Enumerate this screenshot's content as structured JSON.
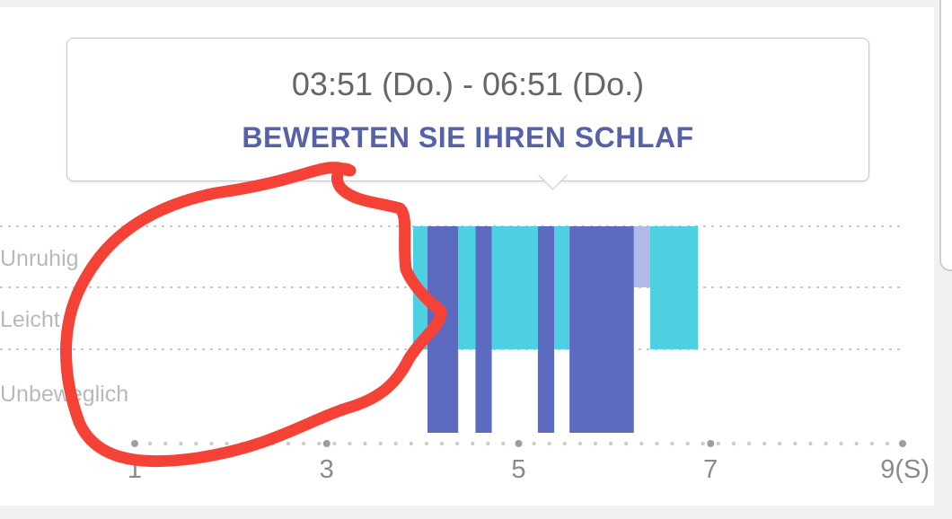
{
  "tooltip": {
    "time_range": "03:51 (Do.) - 06:51 (Do.)",
    "rate_label": "BEWERTEN SIE IHREN SCHLAF"
  },
  "colors": {
    "unbeweglich": "#5c6bc0",
    "leicht": "#4dd0e1",
    "unruhig": "#b3b9e6",
    "annotation": "#f44336"
  },
  "chart_data": {
    "type": "bar",
    "y_levels": [
      "Unruhig",
      "Leicht",
      "Unbeweglich"
    ],
    "x_ticks": [
      "1",
      "3",
      "5",
      "7",
      "9(S)"
    ],
    "x_tick_values": [
      1,
      3,
      5,
      7,
      9
    ],
    "xlim": [
      1,
      9
    ],
    "segments": [
      {
        "level": "Leicht",
        "start": 3.9,
        "end": 4.05
      },
      {
        "level": "Unbeweglich",
        "start": 4.05,
        "end": 4.37
      },
      {
        "level": "Leicht",
        "start": 4.37,
        "end": 4.55
      },
      {
        "level": "Unbeweglich",
        "start": 4.55,
        "end": 4.72
      },
      {
        "level": "Leicht",
        "start": 4.72,
        "end": 5.2
      },
      {
        "level": "Unbeweglich",
        "start": 5.2,
        "end": 5.37
      },
      {
        "level": "Leicht",
        "start": 5.37,
        "end": 5.53
      },
      {
        "level": "Unbeweglich",
        "start": 5.53,
        "end": 6.2
      },
      {
        "level": "Unruhig",
        "start": 6.2,
        "end": 6.37
      },
      {
        "level": "Leicht",
        "start": 6.37,
        "end": 6.87
      }
    ]
  }
}
